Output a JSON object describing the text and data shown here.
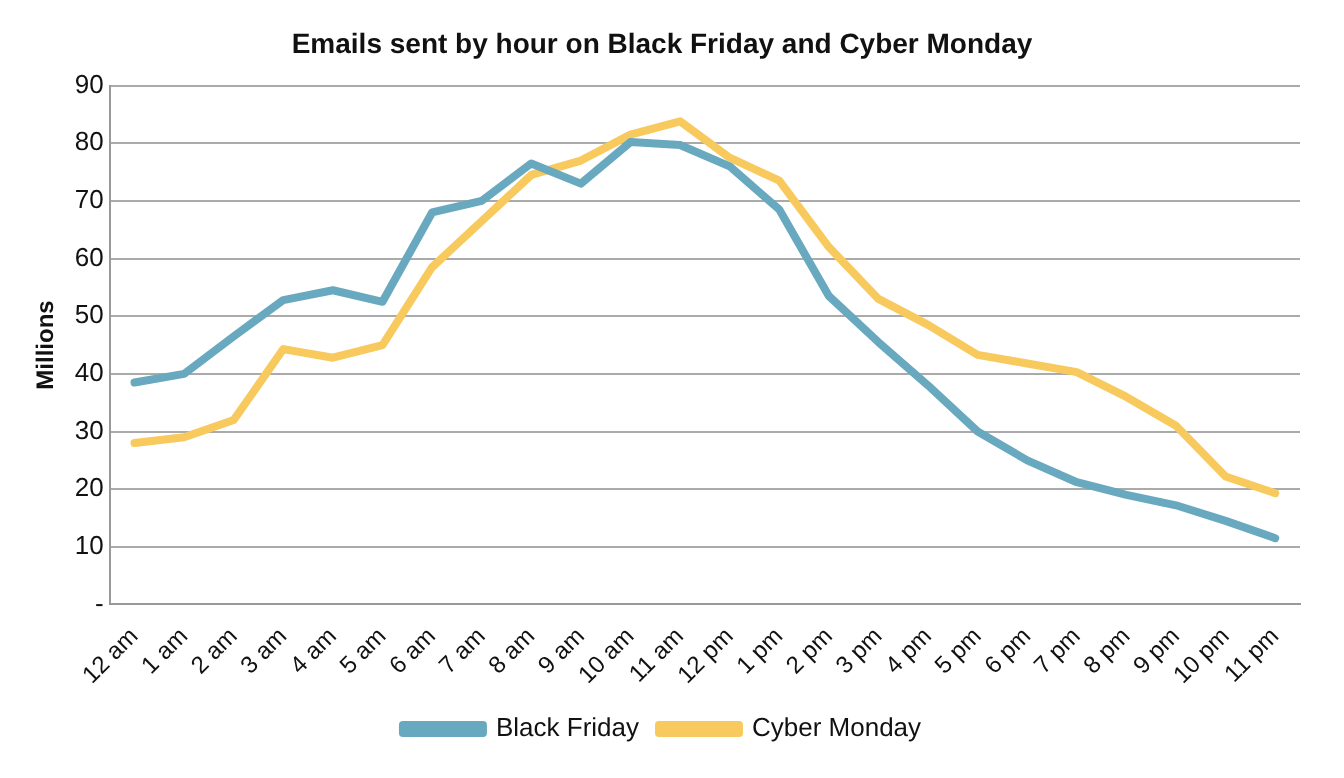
{
  "chart_data": {
    "type": "line",
    "title": "Emails sent by hour on Black Friday and Cyber Monday",
    "ylabel": "Millions",
    "categories": [
      "12 am",
      "1 am",
      "2 am",
      "3 am",
      "4 am",
      "5 am",
      "6 am",
      "7 am",
      "8 am",
      "9 am",
      "10 am",
      "11 am",
      "12 pm",
      "1 pm",
      "2 pm",
      "3 pm",
      "4 pm",
      "5 pm",
      "6 pm",
      "7 pm",
      "8 pm",
      "9 pm",
      "10 pm",
      "11 pm"
    ],
    "series": [
      {
        "name": "Black Friday",
        "color": "#68a9bf",
        "values": [
          38.5,
          40,
          46.5,
          52.8,
          54.5,
          52.5,
          68,
          70,
          76.5,
          73,
          80.2,
          79.7,
          76,
          68.5,
          53.5,
          45.5,
          38,
          30,
          25,
          21.2,
          19,
          17.2,
          14.5,
          11.5
        ]
      },
      {
        "name": "Cyber Monday",
        "color": "#f8c95c",
        "values": [
          28,
          29,
          32,
          44.3,
          42.8,
          45,
          58.5,
          66.5,
          74.5,
          77,
          81.5,
          83.8,
          77.5,
          73.5,
          62,
          53,
          48.5,
          43.3,
          41.8,
          40.3,
          36,
          31,
          22.2,
          19.3
        ]
      }
    ],
    "ylim": [
      0,
      90
    ],
    "yticks": [
      {
        "value": 0,
        "label": "-"
      },
      10,
      20,
      30,
      40,
      50,
      60,
      70,
      80,
      90
    ],
    "grid": "y",
    "legend": "bottom",
    "marker": "none",
    "line_style": "solid"
  }
}
